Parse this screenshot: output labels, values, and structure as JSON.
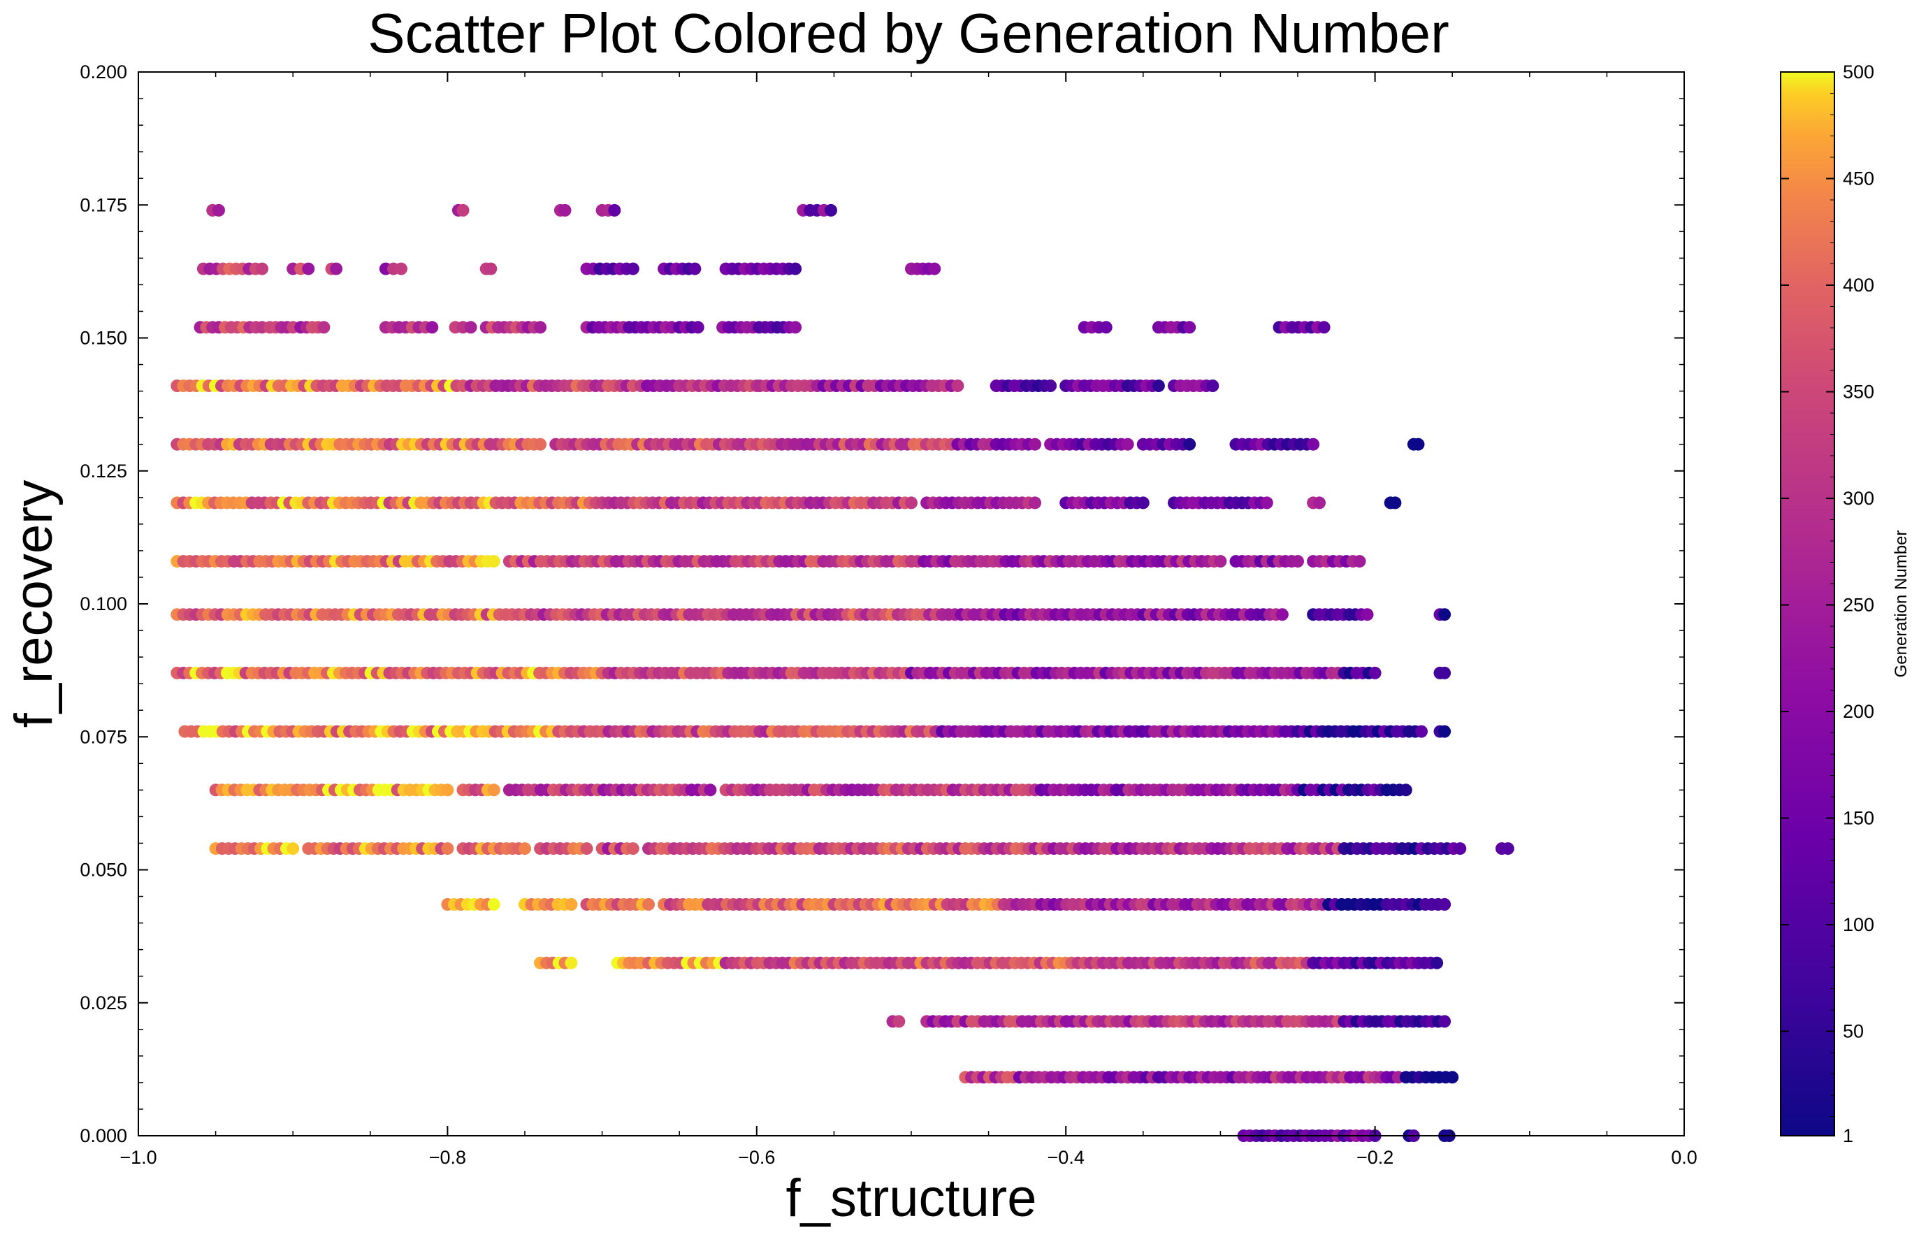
{
  "chart_data": {
    "type": "scatter",
    "title": "Scatter Plot Colored by Generation Number",
    "xlabel": "f_structure",
    "ylabel": "f_recovery",
    "xlim": [
      -1.0,
      0.0
    ],
    "ylim": [
      0.0,
      0.2
    ],
    "x_ticks": [
      -1.0,
      -0.8,
      -0.6,
      -0.4,
      -0.2,
      0.0
    ],
    "x_tick_labels": [
      "−1.0",
      "−0.8",
      "−0.6",
      "−0.4",
      "−0.2",
      "0.0"
    ],
    "y_ticks": [
      0.0,
      0.025,
      0.05,
      0.075,
      0.1,
      0.125,
      0.15,
      0.175,
      0.2
    ],
    "y_tick_labels": [
      "0.000",
      "0.025",
      "0.050",
      "0.075",
      "0.100",
      "0.125",
      "0.150",
      "0.175",
      "0.200"
    ],
    "colorbar": {
      "label": "Generation Number",
      "colormap": "plasma",
      "range": [
        1,
        500
      ],
      "ticks": [
        1,
        50,
        100,
        150,
        200,
        250,
        300,
        350,
        400,
        450,
        500
      ],
      "tick_labels": [
        "1",
        "50",
        "100",
        "150",
        "200",
        "250",
        "300",
        "350",
        "400",
        "450",
        "500"
      ]
    },
    "marker_color_range": [
      "#0d0887",
      "#f0f921"
    ],
    "rows": [
      {
        "y": 0.174,
        "segments": [
          [
            -0.952,
            -0.948
          ],
          [
            -0.793,
            -0.79
          ],
          [
            -0.727,
            -0.724
          ],
          [
            -0.7,
            -0.692
          ],
          [
            -0.57,
            -0.552
          ]
        ],
        "gen": [
          280,
          240,
          240,
          200,
          150
        ]
      },
      {
        "y": 0.163,
        "segments": [
          [
            -0.958,
            -0.92
          ],
          [
            -0.9,
            -0.89
          ],
          [
            -0.875,
            -0.872
          ],
          [
            -0.84,
            -0.83
          ],
          [
            -0.775,
            -0.772
          ],
          [
            -0.71,
            -0.68
          ],
          [
            -0.66,
            -0.64
          ],
          [
            -0.62,
            -0.575
          ],
          [
            -0.5,
            -0.485
          ]
        ],
        "gen": [
          330,
          310,
          300,
          280,
          260,
          150,
          130,
          150,
          220
        ]
      },
      {
        "y": 0.152,
        "segments": [
          [
            -0.96,
            -0.92
          ],
          [
            -0.915,
            -0.9
          ],
          [
            -0.895,
            -0.88
          ],
          [
            -0.84,
            -0.81
          ],
          [
            -0.795,
            -0.785
          ],
          [
            -0.775,
            -0.74
          ],
          [
            -0.71,
            -0.655
          ],
          [
            -0.65,
            -0.638
          ],
          [
            -0.622,
            -0.575
          ],
          [
            -0.388,
            -0.374
          ],
          [
            -0.34,
            -0.32
          ],
          [
            -0.262,
            -0.233
          ]
        ],
        "gen": [
          330,
          320,
          310,
          300,
          270,
          320,
          170,
          130,
          160,
          200,
          150,
          150
        ]
      },
      {
        "y": 0.141,
        "segments": [
          [
            -0.975,
            -0.79
          ],
          [
            -0.785,
            -0.68
          ],
          [
            -0.675,
            -0.6
          ],
          [
            -0.598,
            -0.47
          ],
          [
            -0.445,
            -0.41
          ],
          [
            -0.4,
            -0.34
          ],
          [
            -0.33,
            -0.305
          ]
        ],
        "gen": [
          420,
          330,
          280,
          250,
          130,
          130,
          180
        ]
      },
      {
        "y": 0.13,
        "segments": [
          [
            -0.975,
            -0.74
          ],
          [
            -0.73,
            -0.6
          ],
          [
            -0.6,
            -0.47
          ],
          [
            -0.47,
            -0.42
          ],
          [
            -0.41,
            -0.36
          ],
          [
            -0.35,
            -0.32
          ],
          [
            -0.29,
            -0.24
          ],
          [
            -0.175,
            -0.172
          ]
        ],
        "gen": [
          400,
          350,
          330,
          200,
          150,
          120,
          130,
          50
        ]
      },
      {
        "y": 0.119,
        "segments": [
          [
            -0.975,
            -0.7
          ],
          [
            -0.7,
            -0.5
          ],
          [
            -0.49,
            -0.42
          ],
          [
            -0.4,
            -0.35
          ],
          [
            -0.33,
            -0.27
          ],
          [
            -0.24,
            -0.236
          ],
          [
            -0.19,
            -0.187
          ]
        ],
        "gen": [
          420,
          330,
          280,
          170,
          160,
          250,
          40
        ]
      },
      {
        "y": 0.108,
        "segments": [
          [
            -0.975,
            -0.77
          ],
          [
            -0.76,
            -0.5
          ],
          [
            -0.5,
            -0.3
          ],
          [
            -0.29,
            -0.25
          ],
          [
            -0.24,
            -0.21
          ]
        ],
        "gen": [
          420,
          320,
          250,
          200,
          230
        ]
      },
      {
        "y": 0.098,
        "segments": [
          [
            -0.975,
            -0.75
          ],
          [
            -0.75,
            -0.48
          ],
          [
            -0.48,
            -0.26
          ],
          [
            -0.24,
            -0.205
          ],
          [
            -0.158,
            -0.155
          ]
        ],
        "gen": [
          400,
          330,
          210,
          120,
          50
        ]
      },
      {
        "y": 0.087,
        "segments": [
          [
            -0.975,
            -0.7
          ],
          [
            -0.7,
            -0.5
          ],
          [
            -0.5,
            -0.22
          ],
          [
            -0.22,
            -0.2
          ],
          [
            -0.158,
            -0.155
          ]
        ],
        "gen": [
          420,
          340,
          230,
          60,
          50
        ]
      },
      {
        "y": 0.076,
        "segments": [
          [
            -0.97,
            -0.72
          ],
          [
            -0.72,
            -0.48
          ],
          [
            -0.48,
            -0.25
          ],
          [
            -0.25,
            -0.17
          ],
          [
            -0.158,
            -0.155
          ]
        ],
        "gen": [
          440,
          350,
          200,
          60,
          40
        ]
      },
      {
        "y": 0.065,
        "segments": [
          [
            -0.95,
            -0.8
          ],
          [
            -0.79,
            -0.77
          ],
          [
            -0.76,
            -0.63
          ],
          [
            -0.62,
            -0.42
          ],
          [
            -0.42,
            -0.25
          ],
          [
            -0.25,
            -0.18
          ]
        ],
        "gen": [
          450,
          400,
          300,
          300,
          220,
          80
        ]
      },
      {
        "y": 0.054,
        "segments": [
          [
            -0.95,
            -0.9
          ],
          [
            -0.89,
            -0.8
          ],
          [
            -0.79,
            -0.75
          ],
          [
            -0.74,
            -0.71
          ],
          [
            -0.7,
            -0.68
          ],
          [
            -0.67,
            -0.42
          ],
          [
            -0.42,
            -0.22
          ],
          [
            -0.22,
            -0.145
          ],
          [
            -0.118,
            -0.114
          ]
        ],
        "gen": [
          460,
          420,
          420,
          380,
          320,
          340,
          300,
          70,
          30
        ]
      },
      {
        "y": 0.0435,
        "segments": [
          [
            -0.8,
            -0.77
          ],
          [
            -0.75,
            -0.72
          ],
          [
            -0.71,
            -0.67
          ],
          [
            -0.66,
            -0.44
          ],
          [
            -0.44,
            -0.23
          ],
          [
            -0.23,
            -0.155
          ]
        ],
        "gen": [
          450,
          440,
          420,
          400,
          260,
          60
        ]
      },
      {
        "y": 0.0325,
        "segments": [
          [
            -0.74,
            -0.72
          ],
          [
            -0.69,
            -0.675
          ],
          [
            -0.67,
            -0.62
          ],
          [
            -0.62,
            -0.38
          ],
          [
            -0.38,
            -0.24
          ],
          [
            -0.24,
            -0.16
          ]
        ],
        "gen": [
          460,
          450,
          440,
          360,
          320,
          120
        ]
      },
      {
        "y": 0.0215,
        "segments": [
          [
            -0.512,
            -0.508
          ],
          [
            -0.49,
            -0.47
          ],
          [
            -0.465,
            -0.22
          ],
          [
            -0.22,
            -0.155
          ]
        ],
        "gen": [
          310,
          280,
          290,
          100
        ]
      },
      {
        "y": 0.011,
        "segments": [
          [
            -0.465,
            -0.43
          ],
          [
            -0.43,
            -0.36
          ],
          [
            -0.36,
            -0.28
          ],
          [
            -0.28,
            -0.2
          ],
          [
            -0.2,
            -0.185
          ],
          [
            -0.18,
            -0.15
          ]
        ],
        "gen": [
          300,
          220,
          200,
          260,
          220,
          40
        ]
      },
      {
        "y": 0.0,
        "segments": [
          [
            -0.285,
            -0.2
          ],
          [
            -0.178,
            -0.175
          ],
          [
            -0.155,
            -0.152
          ]
        ],
        "gen": [
          150,
          40,
          40
        ]
      }
    ]
  }
}
